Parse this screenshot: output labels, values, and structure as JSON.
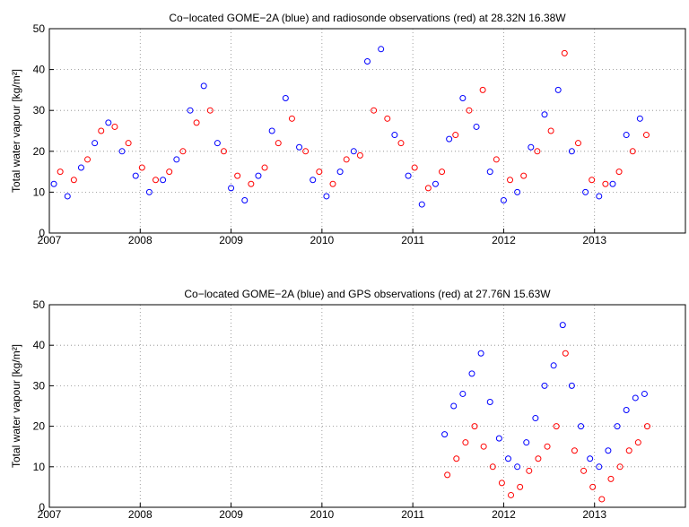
{
  "chart_data": [
    {
      "type": "scatter",
      "title": "Co−located GOME−2A (blue) and radiosonde observations (red) at 28.32N 16.38W",
      "ylabel": "Total water vapour [kg/m²]",
      "xlim": [
        2007,
        2014
      ],
      "xticks": [
        2007,
        2008,
        2009,
        2010,
        2011,
        2012,
        2013
      ],
      "ylim": [
        0,
        50
      ],
      "yticks": [
        0,
        10,
        20,
        30,
        40,
        50
      ],
      "grid": true,
      "series": [
        {
          "color": "#0000ff",
          "x": [
            2007.05,
            2007.2,
            2007.35,
            2007.5,
            2007.65,
            2007.8,
            2007.95,
            2008.1,
            2008.25,
            2008.4,
            2008.55,
            2008.7,
            2008.85,
            2009.0,
            2009.15,
            2009.3,
            2009.45,
            2009.6,
            2009.75,
            2009.9,
            2010.05,
            2010.2,
            2010.35,
            2010.5,
            2010.65,
            2010.8,
            2010.95,
            2011.1,
            2011.25,
            2011.4,
            2011.55,
            2011.7,
            2011.85,
            2012.0,
            2012.15,
            2012.3,
            2012.45,
            2012.6,
            2012.75,
            2012.9,
            2013.05,
            2013.2,
            2013.35,
            2013.5
          ],
          "values": [
            12,
            9,
            16,
            22,
            27,
            20,
            14,
            10,
            13,
            18,
            30,
            36,
            22,
            11,
            8,
            14,
            25,
            33,
            21,
            13,
            9,
            15,
            20,
            42,
            45,
            24,
            14,
            7,
            12,
            23,
            33,
            26,
            15,
            8,
            10,
            21,
            29,
            35,
            20,
            10,
            9,
            12,
            24,
            28
          ]
        },
        {
          "color": "#ff0000",
          "x": [
            2007.12,
            2007.27,
            2007.42,
            2007.57,
            2007.72,
            2007.87,
            2008.02,
            2008.17,
            2008.32,
            2008.47,
            2008.62,
            2008.77,
            2008.92,
            2009.07,
            2009.22,
            2009.37,
            2009.52,
            2009.67,
            2009.82,
            2009.97,
            2010.12,
            2010.27,
            2010.42,
            2010.57,
            2010.72,
            2010.87,
            2011.02,
            2011.17,
            2011.32,
            2011.47,
            2011.62,
            2011.77,
            2011.92,
            2012.07,
            2012.22,
            2012.37,
            2012.52,
            2012.67,
            2012.82,
            2012.97,
            2013.12,
            2013.27,
            2013.42,
            2013.57
          ],
          "values": [
            15,
            13,
            18,
            25,
            26,
            22,
            16,
            13,
            15,
            20,
            27,
            30,
            20,
            14,
            12,
            16,
            22,
            28,
            20,
            15,
            12,
            18,
            19,
            30,
            28,
            22,
            16,
            11,
            15,
            24,
            30,
            35,
            18,
            13,
            14,
            20,
            25,
            44,
            22,
            13,
            12,
            15,
            20,
            24
          ]
        }
      ]
    },
    {
      "type": "scatter",
      "title": "Co−located GOME−2A (blue) and GPS observations (red) at 27.76N 15.63W",
      "ylabel": "Total water vapour [kg/m²]",
      "xlim": [
        2007,
        2014
      ],
      "xticks": [
        2007,
        2008,
        2009,
        2010,
        2011,
        2012,
        2013
      ],
      "ylim": [
        0,
        50
      ],
      "yticks": [
        0,
        10,
        20,
        30,
        40,
        50
      ],
      "grid": true,
      "series": [
        {
          "color": "#0000ff",
          "x": [
            2011.35,
            2011.45,
            2011.55,
            2011.65,
            2011.75,
            2011.85,
            2011.95,
            2012.05,
            2012.15,
            2012.25,
            2012.35,
            2012.45,
            2012.55,
            2012.65,
            2012.75,
            2012.85,
            2012.95,
            2013.05,
            2013.15,
            2013.25,
            2013.35,
            2013.45,
            2013.55
          ],
          "values": [
            18,
            25,
            28,
            33,
            38,
            26,
            17,
            12,
            10,
            16,
            22,
            30,
            35,
            45,
            30,
            20,
            12,
            10,
            14,
            20,
            24,
            27,
            28
          ]
        },
        {
          "color": "#ff0000",
          "x": [
            2011.38,
            2011.48,
            2011.58,
            2011.68,
            2011.78,
            2011.88,
            2011.98,
            2012.08,
            2012.18,
            2012.28,
            2012.38,
            2012.48,
            2012.58,
            2012.68,
            2012.78,
            2012.88,
            2012.98,
            2013.08,
            2013.18,
            2013.28,
            2013.38,
            2013.48,
            2013.58
          ],
          "values": [
            8,
            12,
            16,
            20,
            15,
            10,
            6,
            3,
            5,
            9,
            12,
            15,
            20,
            38,
            14,
            9,
            5,
            2,
            7,
            10,
            14,
            16,
            20
          ]
        }
      ]
    }
  ]
}
